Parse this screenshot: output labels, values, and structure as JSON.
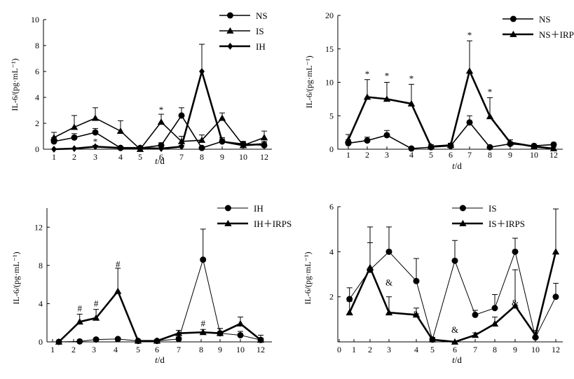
{
  "chart_data": [
    {
      "type": "line",
      "ylabel": "IL-6/(pg·mL⁻¹)",
      "xlabel_var": "t",
      "xlabel_unit": "/d",
      "x_ticks": [
        "1",
        "2",
        "3",
        "4",
        "5",
        "6",
        "7",
        "8",
        "9",
        "10",
        "12"
      ],
      "ylim": [
        0,
        10
      ],
      "y_ticks": [
        "0",
        "2",
        "4",
        "6",
        "8",
        "10"
      ],
      "legend_position": "top-right",
      "series": [
        {
          "name": "NS",
          "marker": "circle",
          "line": "medium",
          "x": [
            1,
            2,
            3,
            4,
            5,
            6,
            7,
            8,
            9,
            10,
            12
          ],
          "values": [
            0.6,
            0.9,
            1.3,
            0.1,
            0.1,
            0.3,
            2.6,
            0.1,
            0.6,
            0.4,
            0.3
          ],
          "err": [
            0.3,
            0.3,
            0.3,
            0.1,
            0.1,
            0.2,
            0.6,
            0.1,
            0.2,
            0.2,
            0.2
          ]
        },
        {
          "name": "IS",
          "marker": "triangle",
          "line": "medium",
          "x": [
            1,
            2,
            3,
            4,
            5,
            6,
            7,
            8,
            9,
            10,
            12
          ],
          "values": [
            0.9,
            1.7,
            2.4,
            1.4,
            0.0,
            2.1,
            0.6,
            0.7,
            2.4,
            0.3,
            0.9
          ],
          "err": [
            0.4,
            0.9,
            0.8,
            0.8,
            0.2,
            0.6,
            0.4,
            0.4,
            0.4,
            0.3,
            0.5
          ]
        },
        {
          "name": "IH",
          "marker": "diamond",
          "line": "thick",
          "x": [
            1,
            2,
            3,
            4,
            5,
            6,
            7,
            8,
            9,
            10,
            12
          ],
          "values": [
            0.0,
            0.05,
            0.2,
            0.1,
            0.1,
            0.05,
            0.2,
            6.0,
            0.6,
            0.3,
            0.4
          ],
          "err": [
            0.0,
            0.05,
            0.1,
            0.1,
            0.1,
            0.05,
            0.1,
            2.1,
            0.3,
            0.2,
            0.2
          ]
        }
      ],
      "annotations": [
        {
          "text": "*",
          "x": 6,
          "y": 2.8
        },
        {
          "text": "*",
          "x": 3,
          "y": 0.35
        }
      ]
    },
    {
      "type": "line",
      "ylabel": "IL-6/(pg·mL⁻¹)",
      "xlabel_var": "t",
      "xlabel_unit": "/d",
      "x_ticks": [
        "1",
        "2",
        "3",
        "4",
        "5",
        "6",
        "7",
        "8",
        "9",
        "10",
        "12"
      ],
      "ylim": [
        0,
        20
      ],
      "y_ticks": [
        "0",
        "5",
        "10",
        "15",
        "20"
      ],
      "legend_position": "top-right",
      "series": [
        {
          "name": "NS",
          "marker": "circle",
          "line": "medium",
          "x": [
            1,
            2,
            3,
            4,
            5,
            6,
            7,
            8,
            9,
            10,
            12
          ],
          "values": [
            0.9,
            1.3,
            2.1,
            0.1,
            0.3,
            0.5,
            4.0,
            0.3,
            0.8,
            0.5,
            0.7
          ],
          "err": [
            0.5,
            0.5,
            0.7,
            0.1,
            0.2,
            0.3,
            1.0,
            0.2,
            0.3,
            0.2,
            0.2
          ]
        },
        {
          "name": "NS＋IRPS",
          "marker": "triangle",
          "line": "thick",
          "x": [
            1,
            2,
            3,
            4,
            5,
            6,
            7,
            8,
            9,
            10,
            12
          ],
          "values": [
            1.4,
            7.8,
            7.5,
            6.8,
            0.4,
            0.6,
            11.7,
            4.9,
            1.0,
            0.4,
            0.1
          ],
          "err": [
            0.8,
            2.6,
            2.5,
            2.9,
            0.3,
            0.3,
            4.5,
            2.8,
            0.4,
            0.3,
            0.2
          ]
        }
      ],
      "annotations": [
        {
          "text": "*",
          "x": 2,
          "y": 10.8
        },
        {
          "text": "*",
          "x": 3,
          "y": 10.5
        },
        {
          "text": "*",
          "x": 4,
          "y": 10.1
        },
        {
          "text": "*",
          "x": 7,
          "y": 16.6
        },
        {
          "text": "*",
          "x": 8,
          "y": 8.1
        }
      ]
    },
    {
      "type": "line",
      "ylabel": "IL-6/(pg·mL⁻¹)",
      "xlabel_var": "t",
      "xlabel_unit": "/d",
      "x_ticks": [
        "1",
        "2",
        "3",
        "4",
        "5",
        "6",
        "7",
        "8",
        "9",
        "10",
        "12"
      ],
      "ylim": [
        0,
        14
      ],
      "y_ticks": [
        "0",
        "4",
        "8",
        "12"
      ],
      "legend_position": "top-right",
      "series": [
        {
          "name": "IH",
          "marker": "circle",
          "line": "thin",
          "x": [
            1.3,
            2.3,
            3.1,
            4.1,
            5.0,
            6.0,
            7.0,
            8.1,
            9.0,
            10.0,
            12.0
          ],
          "values": [
            0.0,
            0.05,
            0.25,
            0.3,
            0.1,
            0.1,
            0.3,
            8.6,
            0.9,
            0.7,
            0.2
          ],
          "err": [
            0.0,
            0.05,
            0.1,
            0.1,
            0.1,
            0.1,
            0.2,
            3.2,
            0.5,
            0.4,
            0.2
          ]
        },
        {
          "name": "IH＋IRPS",
          "marker": "triangle",
          "line": "thick",
          "x": [
            1.3,
            2.3,
            3.1,
            4.1,
            5.0,
            6.0,
            7.0,
            8.1,
            9.0,
            10.0,
            12.0
          ],
          "values": [
            0.0,
            2.1,
            2.5,
            5.3,
            0.1,
            0.1,
            0.9,
            1.0,
            0.9,
            1.9,
            0.2
          ],
          "err": [
            0.0,
            0.8,
            0.9,
            2.4,
            0.1,
            0.1,
            0.3,
            0.3,
            0.5,
            0.7,
            0.5
          ]
        }
      ],
      "annotations": [
        {
          "text": "#",
          "x": 2.3,
          "y": 3.2
        },
        {
          "text": "#",
          "x": 3.1,
          "y": 3.7
        },
        {
          "text": "#",
          "x": 4.1,
          "y": 7.8
        },
        {
          "text": "#",
          "x": 8.1,
          "y": 1.6
        }
      ]
    },
    {
      "type": "line",
      "ylabel": "IL-6/(pg·mL⁻¹)",
      "xlabel_var": "t",
      "xlabel_unit": "/d",
      "x_ticks": [
        "0",
        "1",
        "2",
        "3",
        "4",
        "5",
        "6",
        "7",
        "8",
        "9",
        "10",
        "12"
      ],
      "ylim": [
        0,
        6
      ],
      "y_ticks": [
        "2",
        "4",
        "6"
      ],
      "legend_position": "top-right",
      "series": [
        {
          "name": "IS",
          "marker": "circle",
          "line": "thin",
          "x": [
            0.7,
            2,
            3,
            4,
            5,
            6,
            7,
            8,
            9,
            10,
            12
          ],
          "values": [
            1.9,
            3.2,
            4.0,
            2.7,
            0.1,
            3.6,
            1.2,
            1.5,
            4.0,
            0.2,
            2.0
          ],
          "err": [
            0.5,
            1.9,
            1.1,
            1.0,
            0.1,
            0.9,
            0.2,
            0.6,
            0.6,
            0.2,
            0.6
          ]
        },
        {
          "name": "IS＋IRPS",
          "marker": "triangle",
          "line": "thick",
          "x": [
            0.7,
            2,
            3,
            4,
            5,
            6,
            7,
            8,
            9,
            10,
            12
          ],
          "values": [
            1.3,
            3.3,
            1.3,
            1.2,
            0.1,
            0.0,
            0.3,
            0.8,
            1.6,
            0.3,
            4.0
          ],
          "err": [
            0.5,
            1.1,
            0.7,
            0.3,
            0.1,
            0.0,
            0.1,
            0.3,
            1.6,
            0.2,
            1.9
          ]
        }
      ],
      "annotations": [
        {
          "text": "&",
          "x": 3,
          "y": 2.5
        },
        {
          "text": "&",
          "x": 4,
          "y": 1.1
        },
        {
          "text": "&",
          "x": 6,
          "y": 0.4
        },
        {
          "text": "&",
          "x": 9,
          "y": 1.6
        }
      ]
    }
  ]
}
